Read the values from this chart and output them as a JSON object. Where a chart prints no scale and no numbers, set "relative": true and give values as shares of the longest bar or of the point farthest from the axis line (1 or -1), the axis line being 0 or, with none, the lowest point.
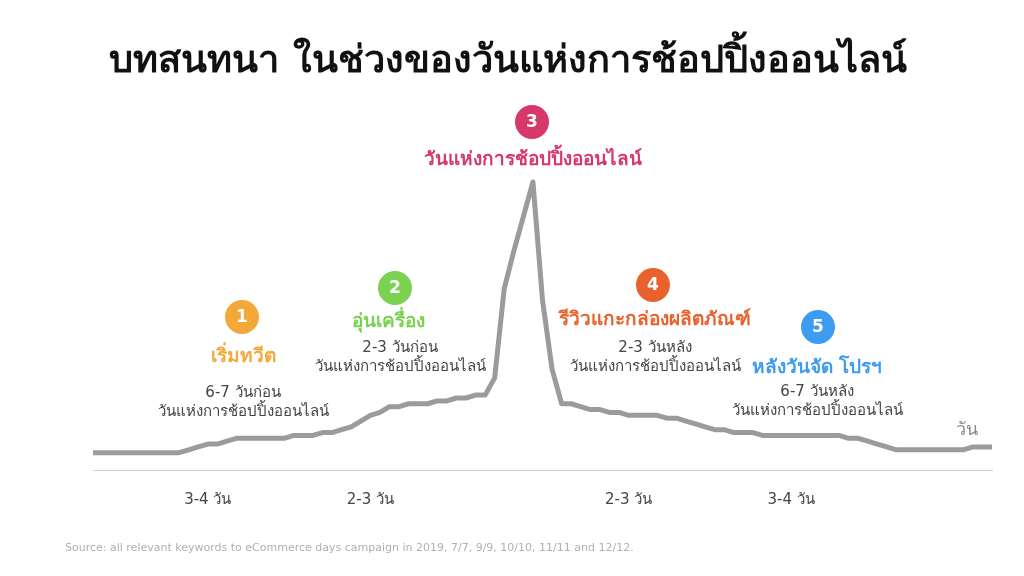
{
  "chart_data": {
    "type": "line",
    "title": "บทสนทนา ในช่วงของวันแห่งการช้อปปิ้งออนไลน์",
    "xlabel": "วัน",
    "relative": true,
    "color": "#9b9b9b",
    "marker": "none",
    "line_style": "solid",
    "categories": [
      null,
      null,
      null,
      null,
      null,
      null,
      null,
      null,
      null,
      null,
      null,
      null,
      "3-4 วัน",
      null,
      null,
      null,
      null,
      null,
      null,
      null,
      null,
      null,
      null,
      null,
      null,
      null,
      null,
      null,
      null,
      "2-3 วัน",
      null,
      null,
      null,
      null,
      null,
      null,
      null,
      null,
      null,
      null,
      null,
      null,
      null,
      null,
      null,
      null,
      null,
      null,
      null,
      null,
      null,
      null,
      null,
      null,
      null,
      null,
      "2-3 วัน",
      null,
      null,
      null,
      null,
      null,
      null,
      null,
      null,
      null,
      null,
      null,
      null,
      null,
      null,
      null,
      null,
      "3-4 วัน",
      null,
      null,
      null,
      null,
      null,
      null,
      null,
      null,
      null,
      null,
      null,
      null,
      null,
      null,
      null,
      null,
      null,
      null,
      null,
      null,
      null
    ],
    "values": [
      0.06,
      0.06,
      0.06,
      0.06,
      0.06,
      0.06,
      0.06,
      0.06,
      0.06,
      0.06,
      0.07,
      0.08,
      0.09,
      0.09,
      0.1,
      0.11,
      0.11,
      0.11,
      0.11,
      0.11,
      0.11,
      0.12,
      0.12,
      0.12,
      0.13,
      0.13,
      0.14,
      0.15,
      0.17,
      0.19,
      0.2,
      0.22,
      0.22,
      0.23,
      0.23,
      0.23,
      0.24,
      0.24,
      0.25,
      0.25,
      0.26,
      0.26,
      0.32,
      0.63,
      0.76,
      0.88,
      1,
      0.59,
      0.35,
      0.23,
      0.23,
      0.22,
      0.21,
      0.21,
      0.2,
      0.2,
      0.19,
      0.19,
      0.19,
      0.19,
      0.18,
      0.18,
      0.17,
      0.16,
      0.15,
      0.14,
      0.14,
      0.13,
      0.13,
      0.13,
      0.12,
      0.12,
      0.12,
      0.12,
      0.12,
      0.12,
      0.12,
      0.12,
      0.12,
      0.11,
      0.11,
      0.1,
      0.09,
      0.08,
      0.07,
      0.07,
      0.07,
      0.07,
      0.07,
      0.07,
      0.07,
      0.07,
      0.08,
      0.08,
      0.08
    ],
    "annotations": [
      "1",
      "เริ่มทวีต",
      "6-7 วันก่อน\nวันแห่งการช้อปปิ้งออนไลน์",
      "2",
      "อุ่นเครื่อง",
      "2-3 วันก่อน\nวันแห่งการช้อปปิ้งออนไลน์",
      "3",
      "วันแห่งการช้อปปิ้งออนไลน์",
      "4",
      "รีวิวแกะกล่องผลิตภัณฑ์",
      "2-3 วันหลัง\nวันแห่งการช้อปปิ้งออนไลน์",
      "5",
      "หลังวันจัด โปรฯ",
      "6-7 วันหลัง\nวันแห่งการช้อปปิ้งออนไลน์",
      "Source: all relevant keywords to eCommerce days campaign in 2019, 7/7, 9/9, 10/10, 11/11 and 12/12."
    ]
  }
}
